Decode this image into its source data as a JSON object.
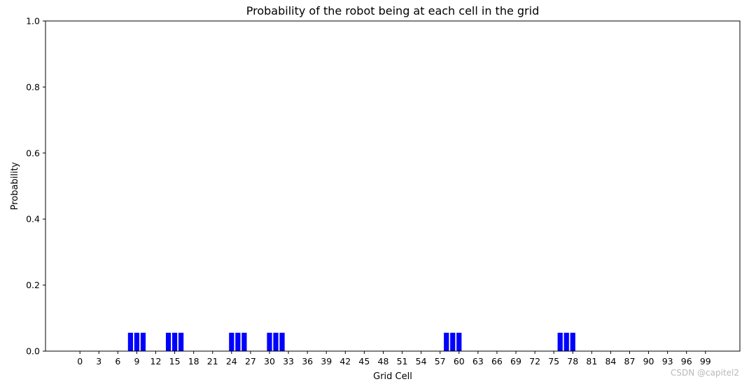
{
  "chart_data": {
    "type": "bar",
    "title": "Probability of the robot being at each cell in the grid",
    "xlabel": "Grid Cell",
    "ylabel": "Probability",
    "ylim": [
      0,
      1.0
    ],
    "xlim": [
      -5.45,
      104.45
    ],
    "x_count": 100,
    "x_ticks": [
      0,
      3,
      6,
      9,
      12,
      15,
      18,
      21,
      24,
      27,
      30,
      33,
      36,
      39,
      42,
      45,
      48,
      51,
      54,
      57,
      60,
      63,
      66,
      69,
      72,
      75,
      78,
      81,
      84,
      87,
      90,
      93,
      96,
      99
    ],
    "y_ticks": [
      "0.0",
      "0.2",
      "0.4",
      "0.6",
      "0.8",
      "1.0"
    ],
    "grid": false,
    "bar_color": "#0000ff",
    "bars": [
      {
        "x": 8,
        "value": 0.0556
      },
      {
        "x": 9,
        "value": 0.0556
      },
      {
        "x": 10,
        "value": 0.0556
      },
      {
        "x": 14,
        "value": 0.0556
      },
      {
        "x": 15,
        "value": 0.0556
      },
      {
        "x": 16,
        "value": 0.0556
      },
      {
        "x": 24,
        "value": 0.0556
      },
      {
        "x": 25,
        "value": 0.0556
      },
      {
        "x": 26,
        "value": 0.0556
      },
      {
        "x": 30,
        "value": 0.0556
      },
      {
        "x": 31,
        "value": 0.0556
      },
      {
        "x": 32,
        "value": 0.0556
      },
      {
        "x": 58,
        "value": 0.0556
      },
      {
        "x": 59,
        "value": 0.0556
      },
      {
        "x": 60,
        "value": 0.0556
      },
      {
        "x": 76,
        "value": 0.0556
      },
      {
        "x": 77,
        "value": 0.0556
      },
      {
        "x": 78,
        "value": 0.0556
      }
    ]
  },
  "watermark": "CSDN @capitel2"
}
